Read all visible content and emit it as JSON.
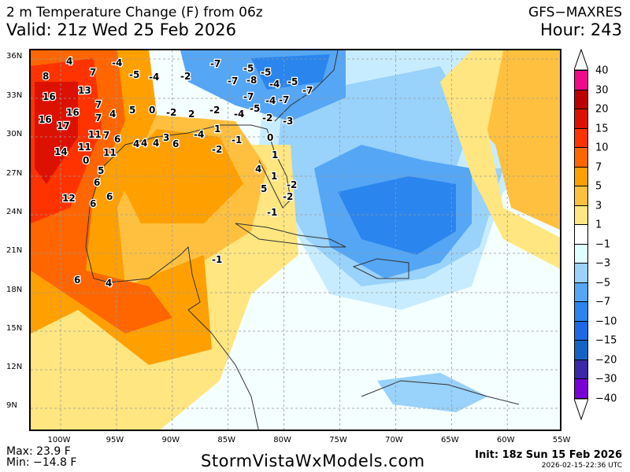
{
  "header": {
    "title": "2 m Temperature Change (F) from 06z",
    "valid": "Valid: 21z Wed 25 Feb 2026",
    "model": "GFS−MAXRES",
    "hour": "Hour: 243"
  },
  "map": {
    "lat_labels": [
      "36N",
      "33N",
      "30N",
      "27N",
      "24N",
      "21N",
      "18N",
      "15N",
      "12N",
      "9N"
    ],
    "lon_labels": [
      "100W",
      "95W",
      "90W",
      "85W",
      "80W",
      "75W",
      "70W",
      "65W",
      "60W",
      "55W"
    ],
    "station_values": [
      "4",
      "8",
      "7",
      "-4",
      "-5",
      "-4",
      "16",
      "13",
      "7",
      "-7",
      "-5",
      "-5",
      "-4",
      "16",
      "7",
      "4",
      "5",
      "0",
      "-2",
      "2",
      "-2",
      "-8",
      "-7",
      "-2",
      "16",
      "17",
      "11",
      "1",
      "-4",
      "-5",
      "-4",
      "-7",
      "-7",
      "-5",
      "14",
      "11",
      "7",
      "11",
      "0",
      "6",
      "4",
      "4",
      "4",
      "3",
      "6",
      "-4",
      "-2",
      "-1",
      "0",
      "-3",
      "-2",
      "-7",
      "5",
      "6",
      "6",
      "12",
      "6",
      "1",
      "1",
      "4",
      "5",
      "-2",
      "-2",
      "-1",
      "-1",
      "6",
      "4"
    ]
  },
  "colorbar": {
    "labels": [
      "40",
      "30",
      "20",
      "15",
      "10",
      "7",
      "5",
      "3",
      "1",
      "−1",
      "−3",
      "−5",
      "−7",
      "−10",
      "−15",
      "−20",
      "−30",
      "−40"
    ],
    "colors": [
      "#ee0a8a",
      "#bb0000",
      "#dd1100",
      "#ff3300",
      "#ff6600",
      "#ffa000",
      "#ffc040",
      "#ffe680",
      "#ffffff",
      "#e0ffff",
      "#99d2fa",
      "#55a6f5",
      "#2a85ee",
      "#1e68e6",
      "#1464c8",
      "#3a28a8",
      "#7a00d6"
    ]
  },
  "footer": {
    "max": "Max: 23.9 F",
    "min": "Min: −14.8 F",
    "site": "StormVistaWxModels.com",
    "init": "Init: 18z Sun 15 Feb 2026",
    "stamp": "2026-02-15-22:36 UTC"
  }
}
